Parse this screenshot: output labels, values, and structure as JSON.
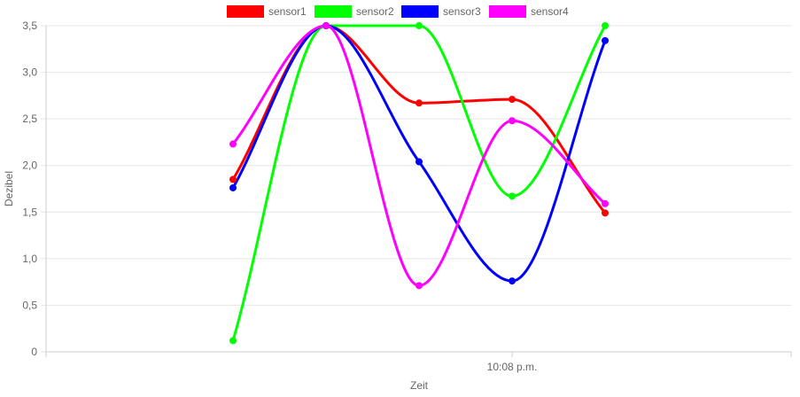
{
  "chart_data": {
    "type": "line",
    "xlabel": "Zeit",
    "ylabel": "Dezibel",
    "x_tick_label": "10:08 p.m.",
    "ylim": [
      0,
      3.5
    ],
    "y_ticks": [
      "0",
      "0,5",
      "1,0",
      "1,5",
      "2,0",
      "2,5",
      "3,0",
      "3,5"
    ],
    "grid": true,
    "legend_position": "top",
    "points_count": 5,
    "series": [
      {
        "name": "sensor1",
        "color": "#ff0000",
        "values": [
          1.85,
          3.5,
          2.67,
          2.71,
          1.49
        ]
      },
      {
        "name": "sensor2",
        "color": "#00ff00",
        "values": [
          0.12,
          3.5,
          3.5,
          1.67,
          3.5
        ]
      },
      {
        "name": "sensor3",
        "color": "#0000ff",
        "values": [
          1.76,
          3.5,
          2.04,
          0.76,
          3.34
        ]
      },
      {
        "name": "sensor4",
        "color": "#ff00ff",
        "values": [
          2.23,
          3.5,
          0.71,
          2.48,
          1.59
        ]
      }
    ]
  }
}
